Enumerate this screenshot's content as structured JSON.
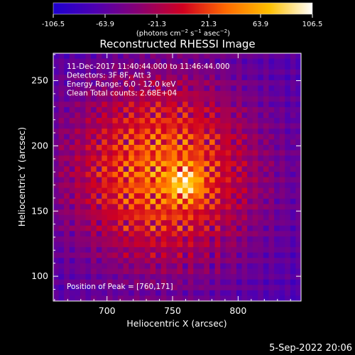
{
  "chart_data": {
    "type": "heatmap",
    "title": "Reconstructed RHESSI Image",
    "xlabel": "Heliocentric X (arcsec)",
    "ylabel": "Heliocentric Y (arcsec)",
    "xlim": [
      659,
      848
    ],
    "ylim": [
      81,
      271
    ],
    "x_ticks": [
      700,
      750,
      800
    ],
    "y_ticks": [
      100,
      150,
      200,
      250
    ],
    "colorbar": {
      "min": -106.5,
      "max": 106.5,
      "ticks": [
        -106.5,
        -63.9,
        -21.3,
        21.3,
        63.9,
        106.5
      ],
      "tick_labels": [
        "-106.5",
        "-63.9",
        "-21.3",
        "21.3",
        "63.9",
        "106.5"
      ],
      "label_parts": [
        "(photons cm",
        "−2",
        " s",
        "−1",
        " asec",
        "−2",
        ")"
      ],
      "colormap": [
        "#1e00d0",
        "#5000b0",
        "#8a0070",
        "#d00020",
        "#ff6a00",
        "#ffc000",
        "#ffffff"
      ]
    },
    "info_lines": [
      "11-Dec-2017 11:40:44.000 to 11:46:44.000",
      "Detectors: 3F 8F, Att 3",
      "Energy Range: 6.0 - 12.0 keV",
      "Clean    Total counts: 2.68E+04"
    ],
    "peak_label": "Position of Peak = [760,171]",
    "peak": {
      "x": 760,
      "y": 171
    },
    "timestamp": "5-Sep-2022 20:06"
  }
}
